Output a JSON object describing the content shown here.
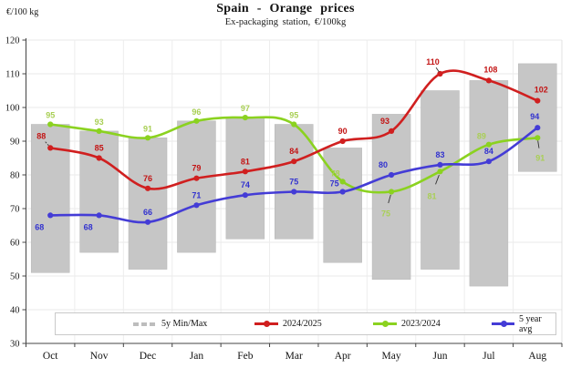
{
  "header": {
    "unit_label": "€/100 kg",
    "title": "Spain - Orange prices",
    "subtitle": "Ex-packaging station, €/100kg"
  },
  "chart_data": {
    "type": "line",
    "title": "Spain - Orange prices",
    "subtitle": "Ex-packaging station, €/100kg",
    "ylabel": "€/100 kg",
    "categories": [
      "Oct",
      "Nov",
      "Dec",
      "Jan",
      "Feb",
      "Mar",
      "Apr",
      "May",
      "Jun",
      "Jul",
      "Aug"
    ],
    "ylim": [
      30,
      120
    ],
    "ytick_step": 10,
    "grid": true,
    "legend_position": "bottom-inside",
    "range_bars": {
      "name": "5y Min/Max",
      "color": "#c6c6c6",
      "min": [
        51,
        57,
        52,
        57,
        61,
        61,
        54,
        49,
        52,
        47,
        81
      ],
      "max": [
        95,
        93,
        91,
        96,
        97,
        95,
        88,
        98,
        105,
        108,
        113
      ]
    },
    "series": [
      {
        "name": "2024/2025",
        "color": "#d01f1f",
        "label_color": "#c31414",
        "values": [
          88,
          85,
          76,
          79,
          81,
          84,
          90,
          93,
          110,
          108,
          102
        ]
      },
      {
        "name": "2023/2024",
        "color": "#8bd220",
        "label_color": "#a9cf55",
        "values": [
          95,
          93,
          91,
          96,
          97,
          95,
          78,
          75,
          81,
          89,
          91
        ]
      },
      {
        "name": "5 year avg",
        "color": "#443cd6",
        "label_color": "#3232cf",
        "values": [
          68,
          68,
          66,
          71,
          74,
          75,
          75,
          80,
          83,
          84,
          94
        ]
      }
    ]
  }
}
